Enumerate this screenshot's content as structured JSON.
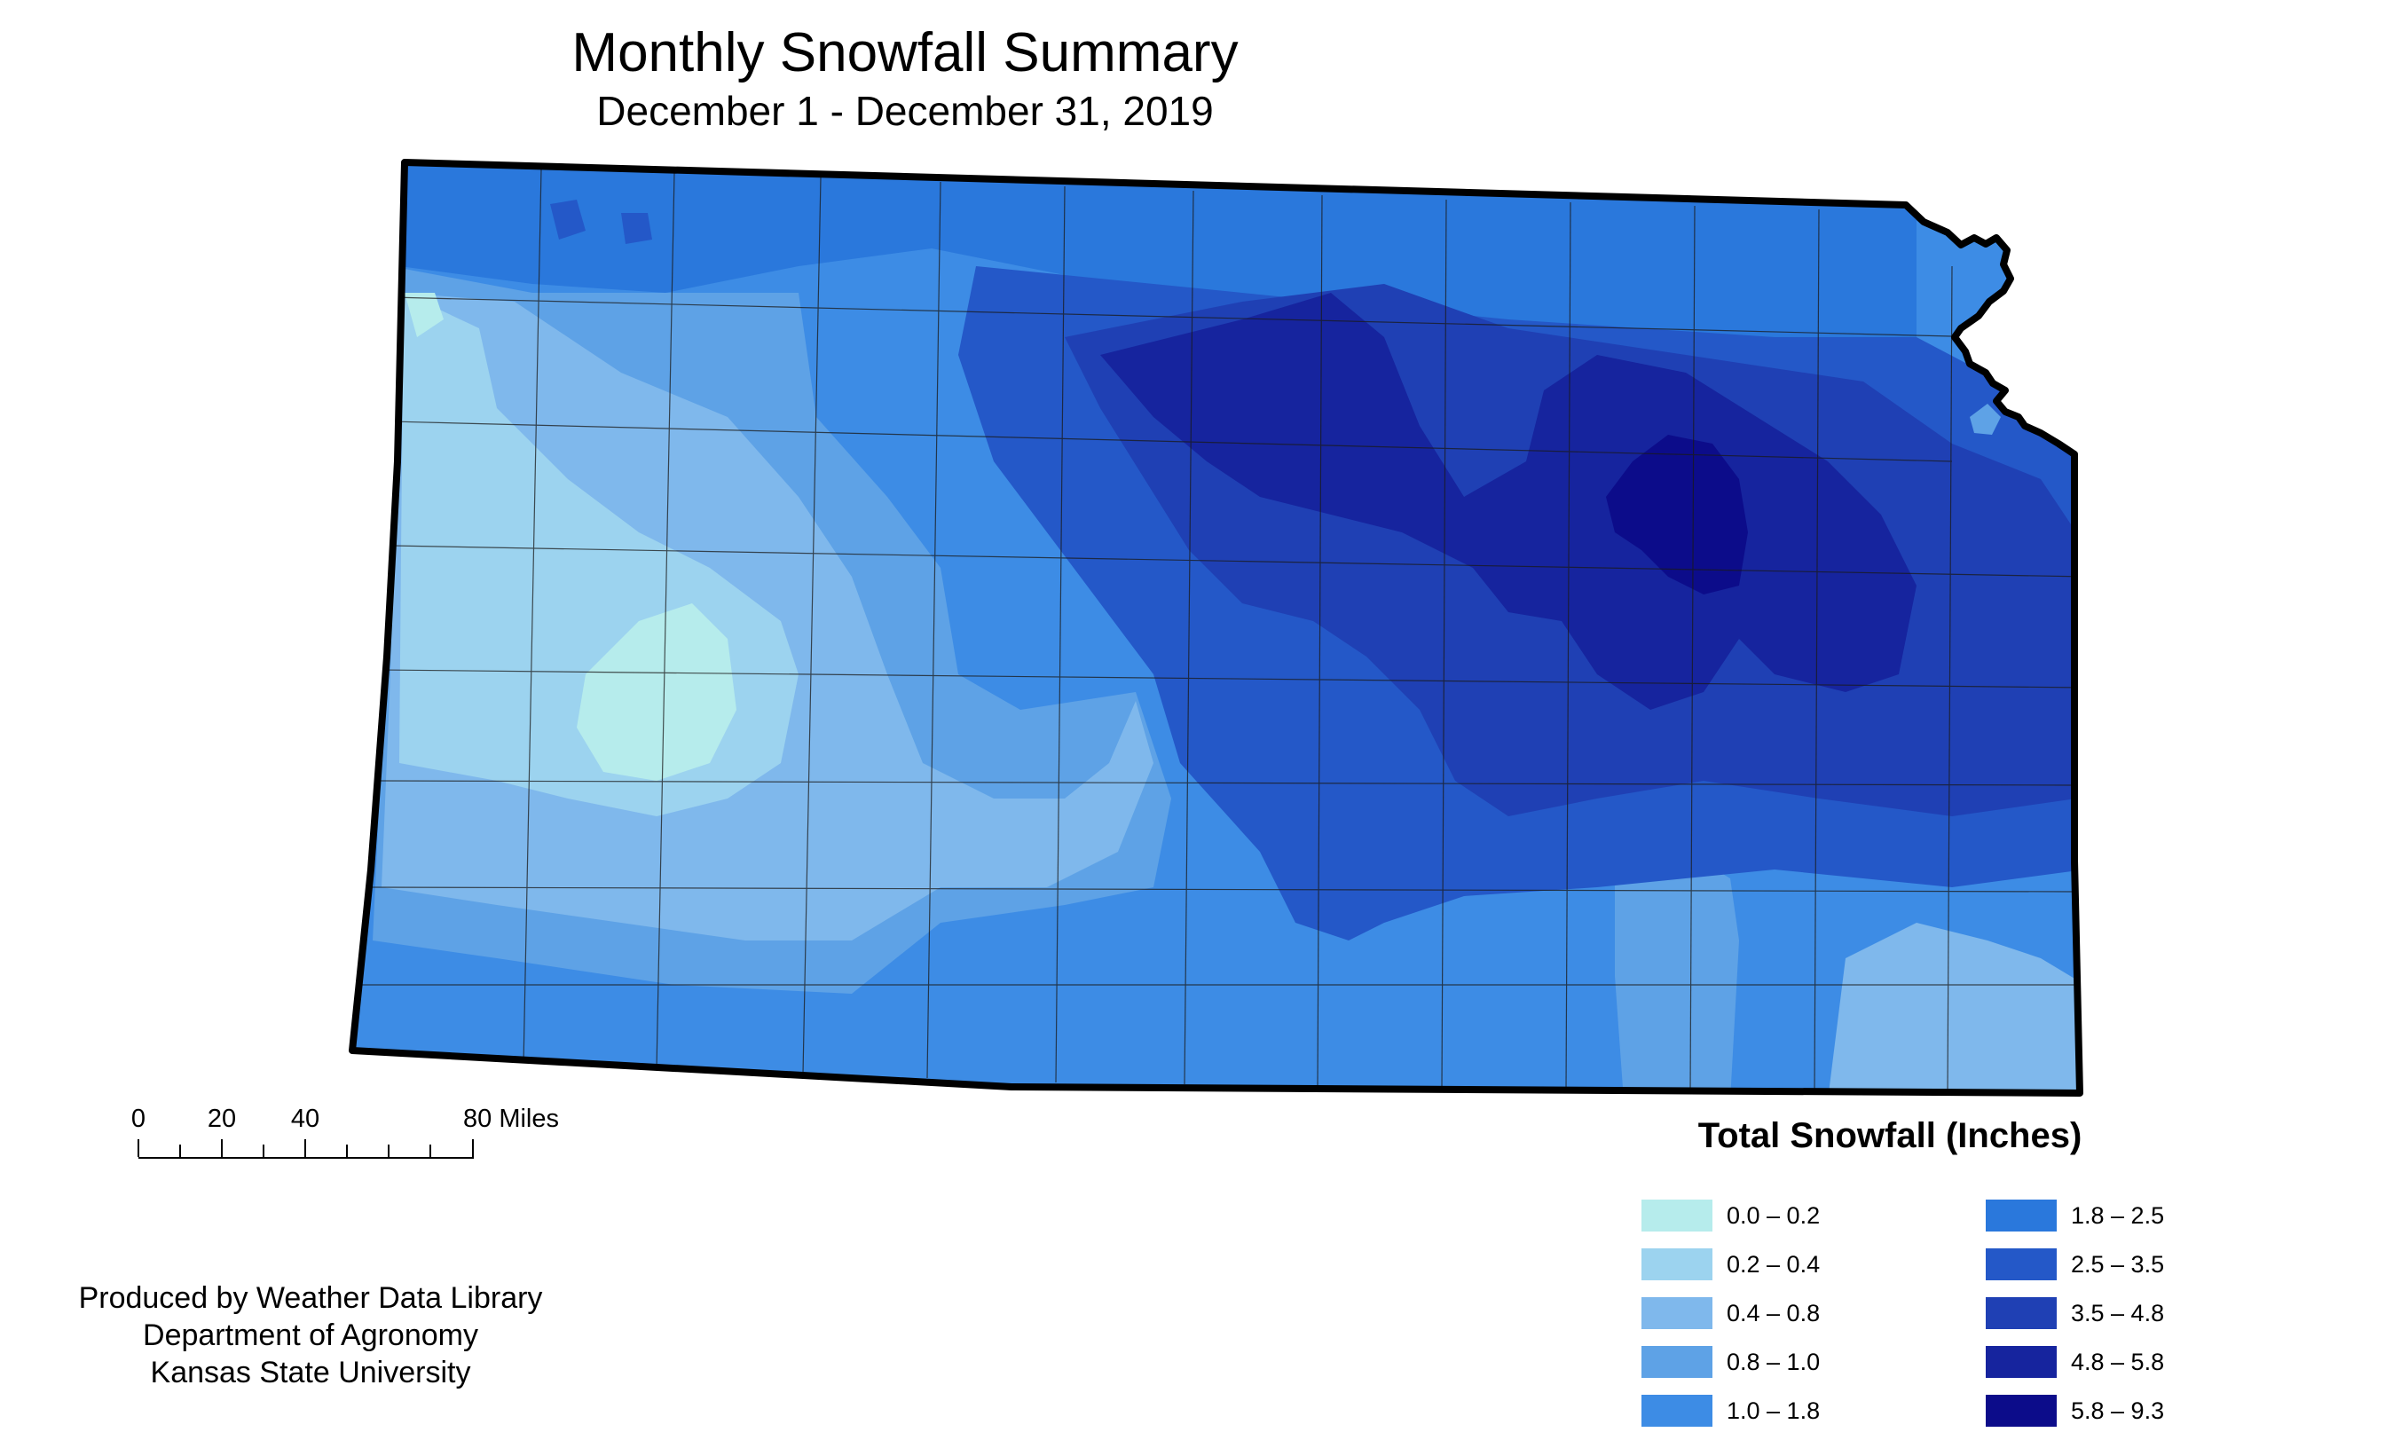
{
  "header": {
    "title": "Monthly Snowfall Summary",
    "subtitle": "December 1 - December 31, 2019"
  },
  "map": {
    "region": "Kansas",
    "layer": "Total Snowfall (Inches)",
    "county_boundaries": true,
    "state_outline_color": "#000000"
  },
  "scale_bar": {
    "labels": [
      "0",
      "20",
      "40",
      "80 Miles"
    ]
  },
  "credits": {
    "line1": "Produced by Weather Data Library",
    "line2": "Department of Agronomy",
    "line3": "Kansas State University"
  },
  "legend": {
    "title": "Total Snowfall (Inches)",
    "classes": [
      {
        "label": "0.0 – 0.2",
        "color": "#b6ecec"
      },
      {
        "label": "0.2 – 0.4",
        "color": "#9cd3ef"
      },
      {
        "label": "0.4 – 0.8",
        "color": "#7fb8ec"
      },
      {
        "label": "0.8 – 1.0",
        "color": "#5ea2e6"
      },
      {
        "label": "1.0 – 1.8",
        "color": "#3d8ce5"
      },
      {
        "label": "1.8 – 2.5",
        "color": "#2a78dc"
      },
      {
        "label": "2.5 – 3.5",
        "color": "#2458c8"
      },
      {
        "label": "3.5 – 4.8",
        "color": "#1f40b4"
      },
      {
        "label": "4.8 – 5.8",
        "color": "#16249e"
      },
      {
        "label": "5.8 – 9.3",
        "color": "#0c0c8a"
      }
    ]
  }
}
